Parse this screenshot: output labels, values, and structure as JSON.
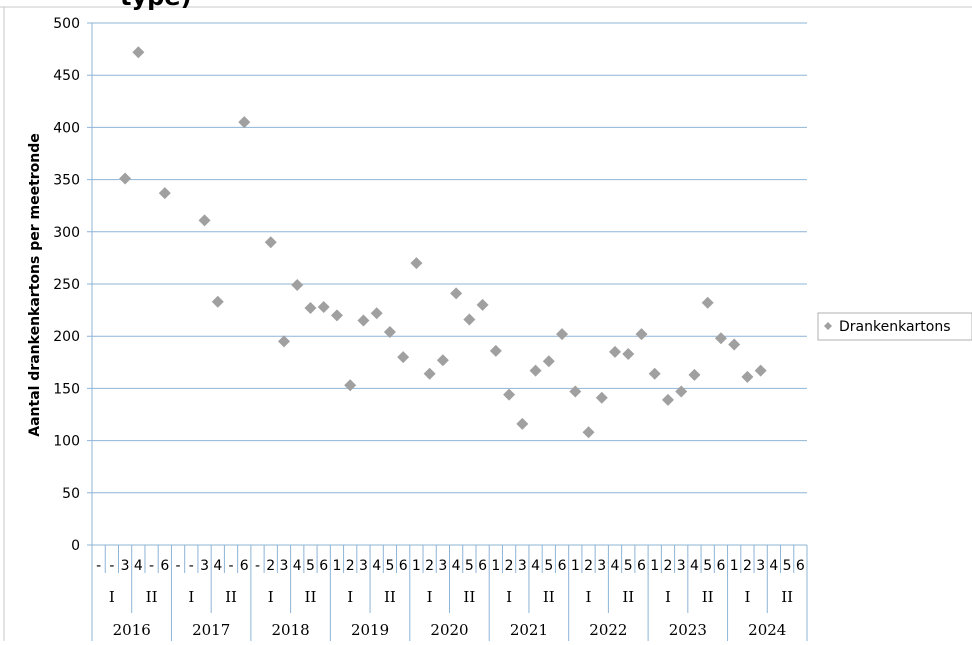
{
  "title_fragment": "type)",
  "chart_data": {
    "type": "scatter",
    "ylabel": "Aantal drankenkartons per meetronde",
    "ylim": [
      0,
      500
    ],
    "yticks": [
      0,
      50,
      100,
      150,
      200,
      250,
      300,
      350,
      400,
      450,
      500
    ],
    "grid": true,
    "legend_position": "right",
    "colors": {
      "marker": "#a0a0a0",
      "grid": "#8eb4d6",
      "axis": "#8eb4d6"
    },
    "x_levels": {
      "rounds": [
        "-",
        "-",
        "3",
        "4",
        "-",
        "6",
        "-",
        "-",
        "3",
        "4",
        "-",
        "6",
        "-",
        "2",
        "3",
        "4",
        "5",
        "6",
        "1",
        "2",
        "3",
        "4",
        "5",
        "6",
        "1",
        "2",
        "3",
        "4",
        "5",
        "6",
        "1",
        "2",
        "3",
        "4",
        "5",
        "6",
        "1",
        "2",
        "3",
        "4",
        "5",
        "6",
        "1",
        "2",
        "3",
        "4",
        "5",
        "6",
        "1",
        "2",
        "3",
        "4",
        "5",
        "6"
      ],
      "halves": [
        "I",
        "II",
        "I",
        "II",
        "I",
        "II",
        "I",
        "II",
        "I",
        "II",
        "I",
        "II",
        "I",
        "II",
        "I",
        "II",
        "I",
        "II"
      ],
      "years": [
        "2016",
        "2017",
        "2018",
        "2019",
        "2020",
        "2021",
        "2022",
        "2023",
        "2024"
      ]
    },
    "series": [
      {
        "name": "Drankenkartons",
        "values": [
          null,
          null,
          351,
          472,
          null,
          337,
          null,
          null,
          311,
          233,
          null,
          405,
          null,
          290,
          195,
          249,
          227,
          228,
          220,
          153,
          215,
          222,
          204,
          180,
          270,
          164,
          177,
          241,
          216,
          230,
          186,
          144,
          116,
          167,
          176,
          202,
          147,
          108,
          141,
          185,
          183,
          202,
          164,
          139,
          147,
          163,
          232,
          198,
          192,
          161,
          167,
          null,
          null,
          null
        ]
      }
    ]
  }
}
